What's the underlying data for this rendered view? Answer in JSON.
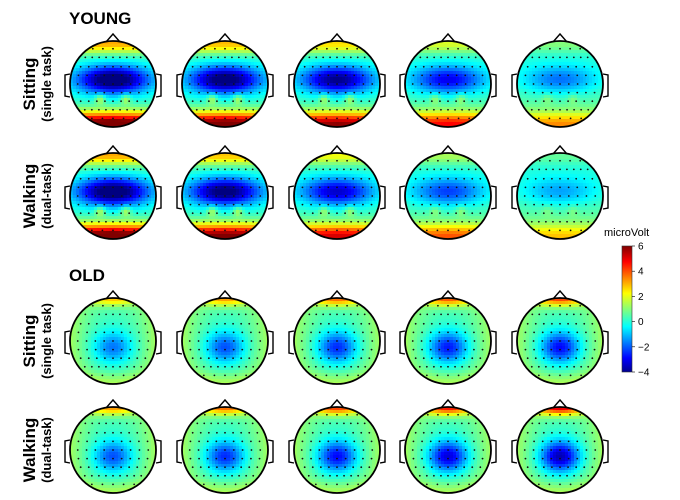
{
  "groups": [
    {
      "title": "YOUNG",
      "rows": [
        {
          "label_main": "Sitting",
          "label_sub": "(single task)",
          "maps": [
            {
              "pattern": "young",
              "strength": 1.0
            },
            {
              "pattern": "young",
              "strength": 0.95
            },
            {
              "pattern": "young",
              "strength": 0.85
            },
            {
              "pattern": "young",
              "strength": 0.65
            },
            {
              "pattern": "young",
              "strength": 0.4
            }
          ]
        },
        {
          "label_main": "Walking",
          "label_sub": "(dual-task)",
          "maps": [
            {
              "pattern": "young",
              "strength": 1.0
            },
            {
              "pattern": "young",
              "strength": 0.92
            },
            {
              "pattern": "young",
              "strength": 0.72
            },
            {
              "pattern": "young",
              "strength": 0.5
            },
            {
              "pattern": "young",
              "strength": 0.3
            }
          ]
        }
      ]
    },
    {
      "title": "OLD",
      "rows": [
        {
          "label_main": "Sitting",
          "label_sub": "(single task)",
          "maps": [
            {
              "pattern": "old",
              "strength": 0.5
            },
            {
              "pattern": "old",
              "strength": 0.6
            },
            {
              "pattern": "old",
              "strength": 0.7
            },
            {
              "pattern": "old",
              "strength": 0.75
            },
            {
              "pattern": "old",
              "strength": 0.8
            }
          ]
        },
        {
          "label_main": "Walking",
          "label_sub": "(dual-task)",
          "maps": [
            {
              "pattern": "old",
              "strength": 0.6
            },
            {
              "pattern": "old",
              "strength": 0.7
            },
            {
              "pattern": "old",
              "strength": 0.8
            },
            {
              "pattern": "old",
              "strength": 0.9
            },
            {
              "pattern": "old",
              "strength": 1.0
            }
          ]
        }
      ]
    }
  ],
  "colorbar": {
    "title": "microVolt",
    "ticks": [
      "6",
      "4",
      "2",
      "0",
      "−2",
      "−4"
    ],
    "min": -4,
    "max": 6,
    "colormap": "jet"
  }
}
